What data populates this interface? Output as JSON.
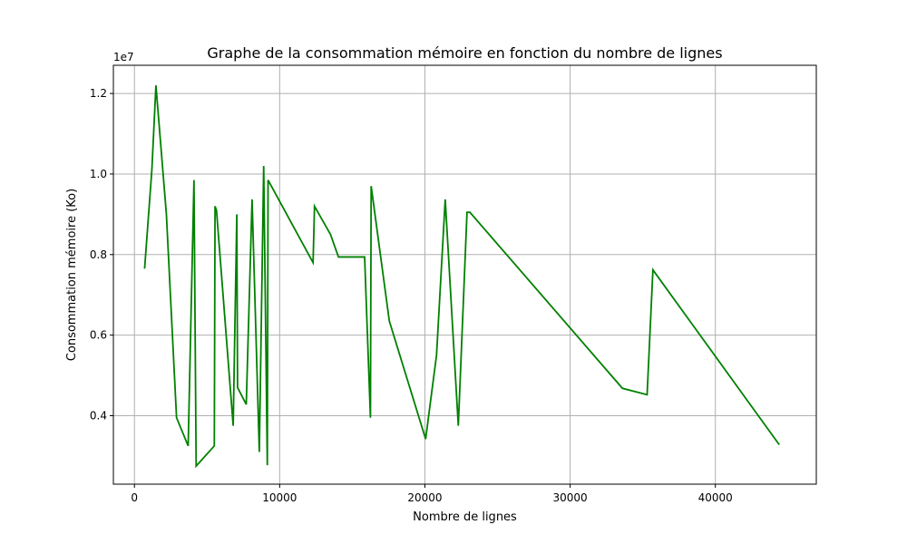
{
  "chart_data": {
    "type": "line",
    "title": "Graphe de la consommation mémoire en fonction du nombre de lignes",
    "xlabel": "Nombre de lignes",
    "ylabel": "Consommation mémoire (Ko)",
    "y_scale_label": "1e7",
    "xlim": [
      -1450,
      46950
    ],
    "ylim": [
      2300000,
      12700000
    ],
    "x_ticks": [
      0,
      10000,
      20000,
      30000,
      40000
    ],
    "x_tick_labels": [
      "0",
      "10000",
      "20000",
      "30000",
      "40000"
    ],
    "y_ticks": [
      4000000,
      6000000,
      8000000,
      10000000,
      12000000
    ],
    "y_tick_labels": [
      "0.4",
      "0.6",
      "0.8",
      "1.0",
      "1.2"
    ],
    "grid": true,
    "series": [
      {
        "color": "#008000",
        "points": [
          [
            700,
            7650000
          ],
          [
            1200,
            10100000
          ],
          [
            1480,
            12200000
          ],
          [
            2200,
            9000000
          ],
          [
            2900,
            3950000
          ],
          [
            3700,
            3250000
          ],
          [
            4100,
            9850000
          ],
          [
            4250,
            2750000
          ],
          [
            5500,
            3250000
          ],
          [
            5550,
            9200000
          ],
          [
            5650,
            9100000
          ],
          [
            6800,
            3750000
          ],
          [
            7050,
            9000000
          ],
          [
            7100,
            4700000
          ],
          [
            7700,
            4280000
          ],
          [
            8100,
            9370000
          ],
          [
            8600,
            3100000
          ],
          [
            8900,
            10200000
          ],
          [
            9150,
            2770000
          ],
          [
            9200,
            9850000
          ],
          [
            12300,
            7800000
          ],
          [
            12400,
            9200000
          ],
          [
            13500,
            8500000
          ],
          [
            14050,
            7940000
          ],
          [
            15850,
            7940000
          ],
          [
            16250,
            3950000
          ],
          [
            16300,
            9700000
          ],
          [
            17550,
            6350000
          ],
          [
            20050,
            3420000
          ],
          [
            20800,
            5500000
          ],
          [
            21400,
            9370000
          ],
          [
            22300,
            3750000
          ],
          [
            22900,
            9050000
          ],
          [
            23100,
            9050000
          ],
          [
            33600,
            4680000
          ],
          [
            35300,
            4520000
          ],
          [
            35700,
            7620000
          ],
          [
            44400,
            3280000
          ]
        ]
      }
    ]
  }
}
